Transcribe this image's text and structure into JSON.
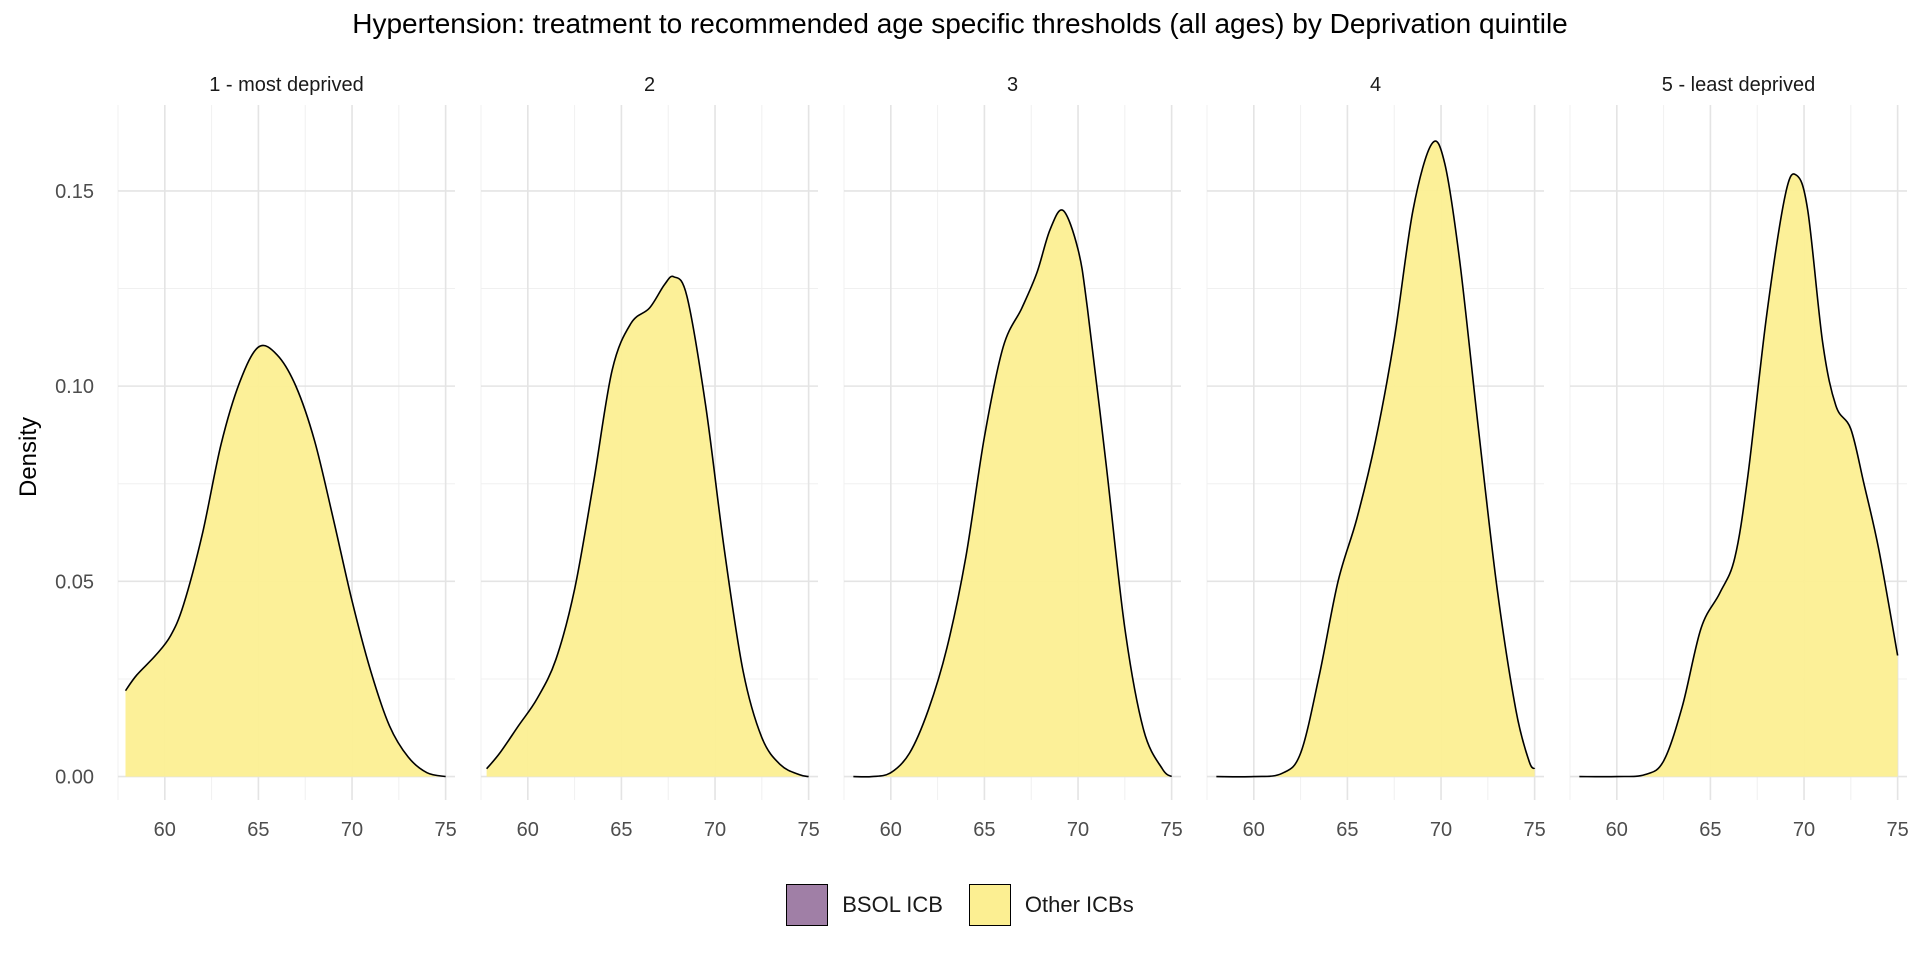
{
  "chart_data": {
    "type": "area",
    "subtype": "density",
    "title": "Hypertension: treatment to recommended age specific thresholds (all ages) by Deprivation quintile",
    "ylabel": "Density",
    "xlabel": "",
    "xlim": [
      57.5,
      75.5
    ],
    "ylim": [
      -0.006,
      0.172
    ],
    "x_ticks": [
      60,
      65,
      70,
      75
    ],
    "x_tick_labels": [
      "60",
      "65",
      "70",
      "75"
    ],
    "y_ticks": [
      0,
      0.05,
      0.1,
      0.15
    ],
    "y_tick_labels": [
      "0.00",
      "0.05",
      "0.10",
      "0.15"
    ],
    "grid": true,
    "legend_position": "bottom",
    "legend": [
      {
        "label": "BSOL ICB",
        "color": "#a07fa6"
      },
      {
        "label": "Other ICBs",
        "color": "#fcef92"
      }
    ],
    "series_color": "#fcef92",
    "panels": [
      {
        "label": "1 - most deprived",
        "x": [
          57.9,
          58.5,
          59.5,
          60.3,
          61.0,
          62.0,
          63.0,
          64.0,
          65.0,
          66.0,
          67.0,
          68.0,
          69.0,
          70.0,
          71.0,
          72.0,
          73.0,
          74.0,
          75.0
        ],
        "y": [
          0.022,
          0.026,
          0.031,
          0.036,
          0.044,
          0.062,
          0.085,
          0.101,
          0.11,
          0.108,
          0.1,
          0.086,
          0.066,
          0.045,
          0.027,
          0.013,
          0.005,
          0.001,
          0.0
        ]
      },
      {
        "label": "2",
        "x": [
          57.8,
          58.5,
          59.5,
          60.5,
          61.5,
          62.5,
          63.5,
          64.5,
          65.5,
          66.5,
          67.3,
          67.8,
          68.5,
          69.5,
          70.5,
          71.5,
          72.5,
          73.5,
          74.5,
          75.0
        ],
        "y": [
          0.002,
          0.006,
          0.013,
          0.02,
          0.03,
          0.048,
          0.075,
          0.104,
          0.116,
          0.12,
          0.126,
          0.128,
          0.123,
          0.095,
          0.058,
          0.027,
          0.01,
          0.003,
          0.0005,
          0.0
        ]
      },
      {
        "label": "3",
        "x": [
          58.0,
          59.0,
          60.0,
          61.0,
          62.0,
          63.0,
          64.0,
          65.0,
          66.0,
          67.0,
          67.8,
          68.5,
          69.2,
          70.0,
          70.5,
          71.5,
          72.5,
          73.5,
          74.5,
          75.0
        ],
        "y": [
          0.0,
          0.0,
          0.001,
          0.006,
          0.017,
          0.033,
          0.056,
          0.087,
          0.11,
          0.12,
          0.129,
          0.14,
          0.145,
          0.135,
          0.12,
          0.08,
          0.038,
          0.012,
          0.002,
          0.0
        ]
      },
      {
        "label": "4",
        "x": [
          58.0,
          60.0,
          61.5,
          62.5,
          63.5,
          64.5,
          65.5,
          66.5,
          67.5,
          68.5,
          69.5,
          70.2,
          71.0,
          72.0,
          73.0,
          74.0,
          74.7,
          75.0
        ],
        "y": [
          0.0,
          0.0,
          0.0008,
          0.006,
          0.026,
          0.05,
          0.066,
          0.086,
          0.112,
          0.145,
          0.162,
          0.157,
          0.132,
          0.089,
          0.048,
          0.017,
          0.004,
          0.002
        ]
      },
      {
        "label": "5 - least deprived",
        "x": [
          58.0,
          60.0,
          61.5,
          62.5,
          63.5,
          64.5,
          65.5,
          66.3,
          67.0,
          68.0,
          69.0,
          69.6,
          70.2,
          71.0,
          71.7,
          72.5,
          73.2,
          74.0,
          75.0
        ],
        "y": [
          0.0,
          0.0,
          0.0005,
          0.004,
          0.018,
          0.038,
          0.047,
          0.056,
          0.077,
          0.118,
          0.149,
          0.154,
          0.145,
          0.111,
          0.095,
          0.089,
          0.075,
          0.058,
          0.031
        ]
      }
    ]
  }
}
